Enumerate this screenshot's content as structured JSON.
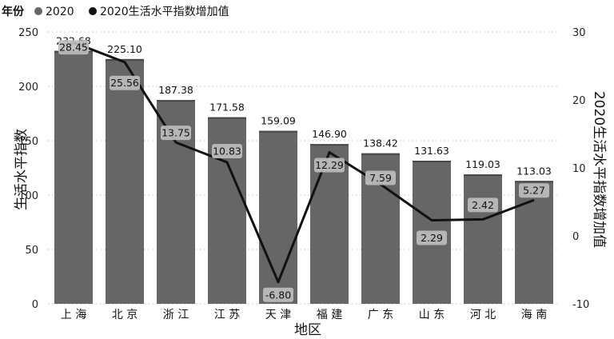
{
  "legend": {
    "title": "年份",
    "items": [
      {
        "label": "2020",
        "color": "#666666"
      },
      {
        "label": "2020生活水平指数增加值",
        "color": "#111111"
      }
    ]
  },
  "chart_data": {
    "type": "bar",
    "categories": [
      "上海",
      "北京",
      "浙江",
      "江苏",
      "天津",
      "福建",
      "广东",
      "山东",
      "河北",
      "海南"
    ],
    "series": [
      {
        "name": "2020",
        "type": "bar",
        "axis": "left",
        "values": [
          232.68,
          225.1,
          187.38,
          171.58,
          159.09,
          146.9,
          138.42,
          131.63,
          119.03,
          113.03
        ]
      },
      {
        "name": "2020生活水平指数增加值",
        "type": "line",
        "axis": "right",
        "values": [
          28.45,
          25.56,
          13.75,
          10.83,
          -6.8,
          12.29,
          7.59,
          2.29,
          2.42,
          5.27
        ]
      }
    ],
    "bar_labels": [
      "232.68",
      "225.10",
      "187.38",
      "171.58",
      "159.09",
      "146.90",
      "138.42",
      "131.63",
      "119.03",
      "113.03"
    ],
    "line_labels": [
      "28.45",
      "25.56",
      "13.75",
      "10.83",
      "-6.80",
      "12.29",
      "7.59",
      "2.29",
      "2.42",
      "5.27"
    ],
    "xlabel": "地区",
    "ylabel": "生活水平指数",
    "y2label": "2020生活水平指数增加值",
    "ylim": [
      0,
      250
    ],
    "y2lim": [
      -10,
      30
    ],
    "yticks": [
      "0",
      "50",
      "100",
      "150",
      "200",
      "250"
    ],
    "y2ticks": [
      "-10",
      "0",
      "10",
      "20",
      "30"
    ],
    "grid": true,
    "legend_position": "top-left"
  },
  "colors": {
    "bar": "#666666",
    "bar_top": "#484848",
    "line": "#111111",
    "label_box": "#bdbdbd",
    "grid": "#cccccc"
  }
}
